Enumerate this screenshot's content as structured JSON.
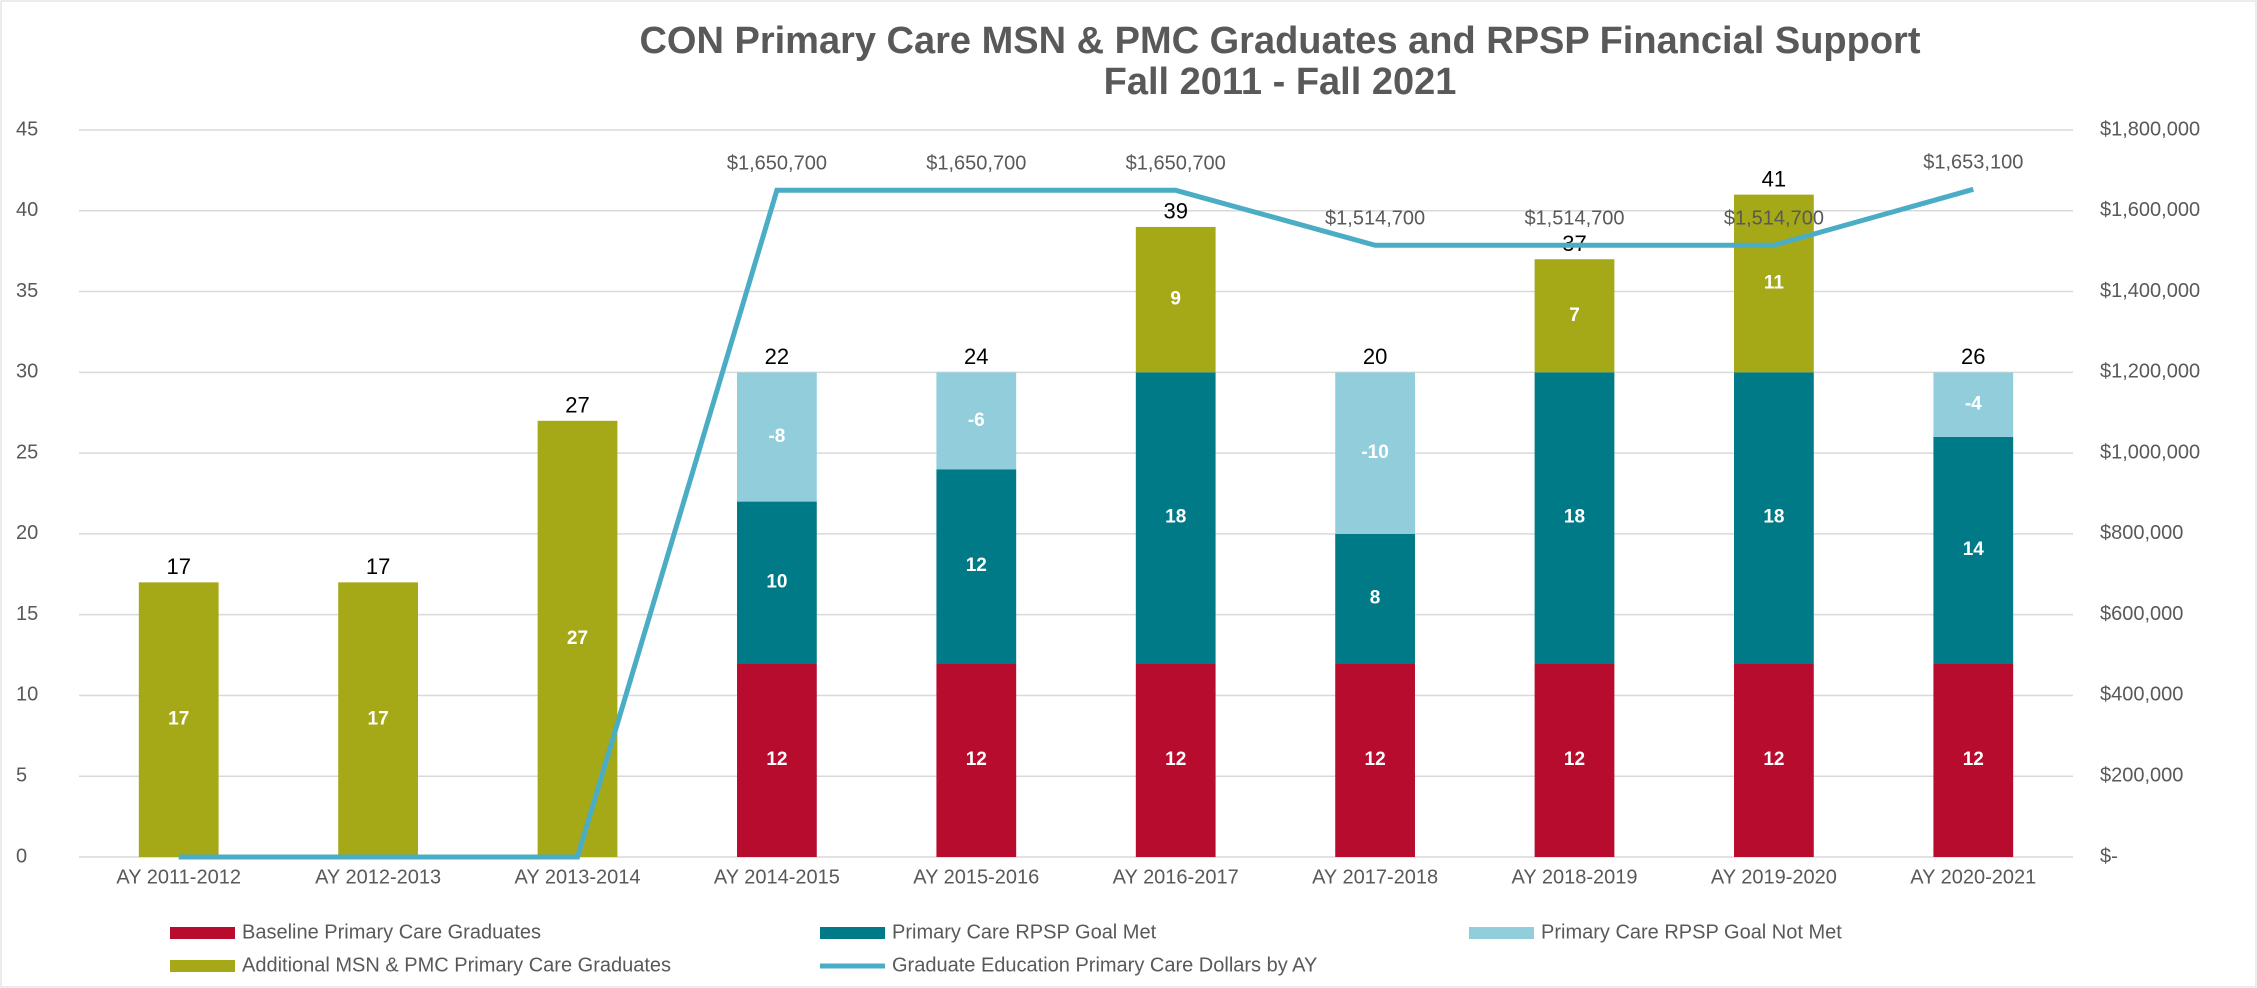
{
  "chart_data": {
    "type": "bar",
    "title": [
      "CON Primary Care MSN & PMC Graduates and RPSP Financial Support",
      "Fall 2011 - Fall 2021"
    ],
    "categories": [
      "AY 2011-2012",
      "AY 2012-2013",
      "AY 2013-2014",
      "AY 2014-2015",
      "AY 2015-2016",
      "AY 2016-2017",
      "AY 2017-2018",
      "AY 2018-2019",
      "AY 2019-2020",
      "AY 2020-2021"
    ],
    "series": [
      {
        "name": "Baseline Primary Care Graduates",
        "color": "#b80c2f",
        "values": [
          0,
          0,
          0,
          12,
          12,
          12,
          12,
          12,
          12,
          12
        ]
      },
      {
        "name": "Primary Care RPSP Goal Met",
        "color": "#007a87",
        "values": [
          null,
          null,
          null,
          10,
          12,
          18,
          8,
          18,
          18,
          14
        ]
      },
      {
        "name": "Primary Care RPSP Goal Not Met",
        "color": "#92cddc",
        "values": [
          null,
          null,
          null,
          -8,
          -6,
          null,
          -10,
          null,
          null,
          -4
        ]
      },
      {
        "name": "Additional MSN & PMC Primary Care Graduates",
        "color": "#a5a817",
        "values": [
          17,
          17,
          27,
          null,
          null,
          9,
          null,
          7,
          11,
          null
        ]
      },
      {
        "name": "Graduate Education Primary Care Dollars by AY",
        "color": "#4bacc6",
        "type": "line",
        "axis": "y2",
        "values": [
          0,
          0,
          0,
          1650700,
          1650700,
          1650700,
          1514700,
          1514700,
          1514700,
          1653100
        ],
        "value_labels": [
          null,
          null,
          null,
          "$1,650,700",
          "$1,650,700",
          "$1,650,700",
          "$1,514,700",
          "$1,514,700",
          "$1,514,700",
          "$1,653,100"
        ]
      }
    ],
    "totals": [
      17,
      17,
      27,
      22,
      24,
      39,
      20,
      37,
      41,
      26
    ],
    "ylim": [
      0,
      45
    ],
    "yticks": [
      0,
      5,
      10,
      15,
      20,
      25,
      30,
      35,
      40,
      45
    ],
    "y2lim": [
      0,
      1800000
    ],
    "y2ticks": [
      {
        "value": 0,
        "label": "$-"
      },
      {
        "value": 200000,
        "label": "$200,000"
      },
      {
        "value": 400000,
        "label": "$400,000"
      },
      {
        "value": 600000,
        "label": "$600,000"
      },
      {
        "value": 800000,
        "label": "$800,000"
      },
      {
        "value": 1000000,
        "label": "$1,000,000"
      },
      {
        "value": 1200000,
        "label": "$1,200,000"
      },
      {
        "value": 1400000,
        "label": "$1,400,000"
      },
      {
        "value": 1600000,
        "label": "$1,600,000"
      },
      {
        "value": 1800000,
        "label": "$1,800,000"
      }
    ],
    "grid": true,
    "legend": "bottom"
  }
}
